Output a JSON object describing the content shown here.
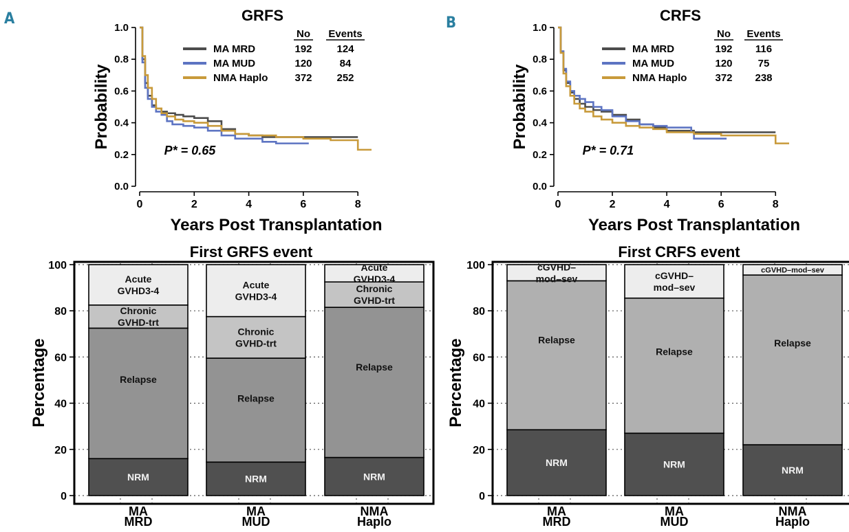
{
  "panels": {
    "A": {
      "letter": "A"
    },
    "B": {
      "letter": "B"
    }
  },
  "chart_data": [
    {
      "id": "grfs-km",
      "type": "line",
      "title": "GRFS",
      "xlabel": "Years Post Transplantation",
      "ylabel": "Probability",
      "xlim": [
        0,
        8.5
      ],
      "ylim": [
        0,
        1.0
      ],
      "x_ticks": [
        0,
        2,
        4,
        6,
        8
      ],
      "y_ticks": [
        0.0,
        0.2,
        0.4,
        0.6,
        0.8,
        1.0
      ],
      "annotation": "P* = 0.65",
      "legend": {
        "header_no": "No",
        "header_events": "Events",
        "placement": "top-right"
      },
      "series": [
        {
          "name": "MA MRD",
          "no": "192",
          "events": "124",
          "color": "#4d4d4d",
          "x": [
            0,
            0.1,
            0.2,
            0.3,
            0.45,
            0.6,
            0.8,
            1.0,
            1.3,
            1.6,
            2.0,
            2.5,
            3.0,
            3.5,
            4.0,
            4.5,
            5.0,
            6.0,
            7.0,
            8.0
          ],
          "y": [
            1.0,
            0.8,
            0.65,
            0.57,
            0.51,
            0.49,
            0.47,
            0.46,
            0.45,
            0.44,
            0.43,
            0.41,
            0.36,
            0.33,
            0.32,
            0.31,
            0.31,
            0.31,
            0.31,
            0.31
          ]
        },
        {
          "name": "MA MUD",
          "no": "120",
          "events": "84",
          "color": "#5d74c2",
          "x": [
            0,
            0.1,
            0.2,
            0.3,
            0.45,
            0.6,
            0.8,
            1.0,
            1.2,
            1.6,
            2.0,
            2.5,
            3.0,
            3.5,
            4.0,
            4.5,
            5.0,
            5.5,
            6.2
          ],
          "y": [
            1.0,
            0.78,
            0.62,
            0.55,
            0.5,
            0.47,
            0.45,
            0.41,
            0.39,
            0.38,
            0.37,
            0.35,
            0.32,
            0.3,
            0.3,
            0.28,
            0.27,
            0.27,
            0.27
          ]
        },
        {
          "name": "NMA Haplo",
          "no": "372",
          "events": "252",
          "color": "#c89a3a",
          "x": [
            0,
            0.1,
            0.2,
            0.3,
            0.45,
            0.6,
            0.8,
            1.0,
            1.3,
            1.6,
            2.0,
            2.5,
            3.0,
            3.5,
            4.0,
            5.0,
            6.0,
            7.0,
            7.95,
            8.0,
            8.5
          ],
          "y": [
            1.0,
            0.82,
            0.7,
            0.62,
            0.55,
            0.49,
            0.46,
            0.44,
            0.42,
            0.41,
            0.4,
            0.38,
            0.35,
            0.33,
            0.32,
            0.31,
            0.3,
            0.29,
            0.29,
            0.23,
            0.23
          ]
        }
      ]
    },
    {
      "id": "crfs-km",
      "type": "line",
      "title": "CRFS",
      "xlabel": "Years Post Transplantation",
      "ylabel": "Probability",
      "xlim": [
        0,
        8.5
      ],
      "ylim": [
        0,
        1.0
      ],
      "x_ticks": [
        0,
        2,
        4,
        6,
        8
      ],
      "y_ticks": [
        0.0,
        0.2,
        0.4,
        0.6,
        0.8,
        1.0
      ],
      "annotation": "P* = 0.71",
      "legend": {
        "header_no": "No",
        "header_events": "Events",
        "placement": "top-right"
      },
      "series": [
        {
          "name": "MA MRD",
          "no": "192",
          "events": "116",
          "color": "#4d4d4d",
          "x": [
            0,
            0.1,
            0.2,
            0.3,
            0.45,
            0.6,
            0.8,
            1.0,
            1.3,
            1.6,
            2.0,
            2.5,
            3.0,
            3.5,
            4.0,
            5.0,
            6.0,
            7.0,
            8.0
          ],
          "y": [
            1.0,
            0.85,
            0.73,
            0.65,
            0.59,
            0.55,
            0.52,
            0.5,
            0.48,
            0.47,
            0.45,
            0.42,
            0.39,
            0.37,
            0.35,
            0.34,
            0.34,
            0.34,
            0.34
          ]
        },
        {
          "name": "MA MUD",
          "no": "120",
          "events": "75",
          "color": "#5d74c2",
          "x": [
            0,
            0.1,
            0.2,
            0.3,
            0.45,
            0.6,
            0.8,
            1.0,
            1.3,
            1.6,
            2.0,
            2.5,
            3.0,
            3.5,
            4.0,
            4.9,
            5.0,
            5.5,
            6.2
          ],
          "y": [
            1.0,
            0.85,
            0.74,
            0.66,
            0.6,
            0.57,
            0.55,
            0.53,
            0.5,
            0.48,
            0.44,
            0.41,
            0.39,
            0.38,
            0.37,
            0.34,
            0.3,
            0.3,
            0.3
          ]
        },
        {
          "name": "NMA Haplo",
          "no": "372",
          "events": "238",
          "color": "#c89a3a",
          "x": [
            0,
            0.1,
            0.2,
            0.3,
            0.45,
            0.6,
            0.8,
            1.0,
            1.3,
            1.6,
            2.0,
            2.5,
            3.0,
            3.5,
            4.0,
            5.0,
            6.0,
            7.0,
            7.95,
            8.0,
            8.5
          ],
          "y": [
            1.0,
            0.84,
            0.71,
            0.63,
            0.57,
            0.52,
            0.49,
            0.47,
            0.44,
            0.42,
            0.4,
            0.38,
            0.37,
            0.36,
            0.34,
            0.33,
            0.32,
            0.32,
            0.32,
            0.27,
            0.27
          ]
        }
      ]
    },
    {
      "id": "grfs-stack",
      "type": "bar",
      "stacked": true,
      "title": "First GRFS event",
      "ylabel": "Percentage",
      "ylim": [
        0,
        100
      ],
      "y_ticks": [
        0,
        20,
        40,
        60,
        80,
        100
      ],
      "grid": true,
      "categories": [
        {
          "line1": "MA",
          "line2": "MRD"
        },
        {
          "line1": "MA",
          "line2": "MUD"
        },
        {
          "line1": "NMA",
          "line2": "Haplo"
        }
      ],
      "series": [
        {
          "name": "NRM",
          "color": "#505050",
          "values": [
            16,
            14.5,
            16.5
          ]
        },
        {
          "name": "Relapse",
          "color": "#939393",
          "values": [
            56.5,
            45,
            65
          ]
        },
        {
          "name": "Chronic GVHD-trt",
          "color": "#c4c4c4",
          "values": [
            10,
            18,
            11
          ]
        },
        {
          "name": "Acute GVHD3-4",
          "color": "#ededed",
          "values": [
            17.5,
            22.5,
            7.5
          ]
        }
      ],
      "segment_labels": [
        [
          "NRM",
          "Relapse",
          [
            "Chronic",
            "GVHD-trt"
          ],
          [
            "Acute",
            "GVHD3-4"
          ]
        ],
        [
          "NRM",
          "Relapse",
          [
            "Chronic",
            "GVHD-trt"
          ],
          [
            "Acute",
            "GVHD3-4"
          ]
        ],
        [
          "NRM",
          "Relapse",
          [
            "Chronic",
            "GVHD-trt"
          ],
          [
            "Acute",
            "GVHD3-4"
          ]
        ]
      ]
    },
    {
      "id": "crfs-stack",
      "type": "bar",
      "stacked": true,
      "title": "First CRFS event",
      "ylabel": "Percentage",
      "ylim": [
        0,
        100
      ],
      "y_ticks": [
        0,
        20,
        40,
        60,
        80,
        100
      ],
      "grid": true,
      "categories": [
        {
          "line1": "MA",
          "line2": "MRD"
        },
        {
          "line1": "MA",
          "line2": "MUD"
        },
        {
          "line1": "NMA",
          "line2": "Haplo"
        }
      ],
      "series": [
        {
          "name": "NRM",
          "color": "#505050",
          "values": [
            28.5,
            27,
            22
          ]
        },
        {
          "name": "Relapse",
          "color": "#b0b0b0",
          "values": [
            64.5,
            58.5,
            73.5
          ]
        },
        {
          "name": "cGVHD-mod-sev",
          "color": "#ededed",
          "values": [
            7,
            14.5,
            4.5
          ]
        }
      ],
      "segment_labels": [
        [
          "NRM",
          "Relapse",
          [
            "cGVHD–",
            "mod–sev"
          ]
        ],
        [
          "NRM",
          "Relapse",
          [
            "cGVHD–",
            "mod–sev"
          ]
        ],
        [
          "NRM",
          "Relapse",
          [
            "cGVHD–mod–sev"
          ]
        ]
      ]
    }
  ]
}
